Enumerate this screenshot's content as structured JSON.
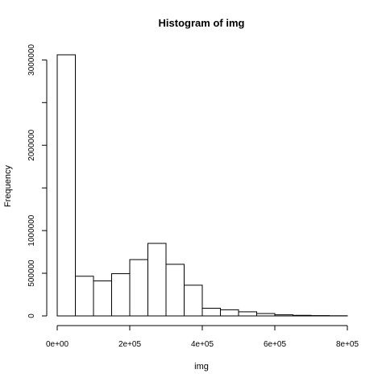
{
  "chart_data": {
    "type": "bar",
    "title": "Histogram of img",
    "xlabel": "img",
    "ylabel": "Frequency",
    "bin_edges": [
      0,
      50000,
      100000,
      150000,
      200000,
      250000,
      300000,
      350000,
      400000,
      450000,
      500000,
      550000,
      600000,
      650000,
      700000,
      750000,
      800000
    ],
    "values": [
      3060000,
      465000,
      410000,
      495000,
      660000,
      850000,
      605000,
      360000,
      90000,
      72000,
      48000,
      28000,
      13000,
      7000,
      4000,
      2000
    ],
    "xlim": [
      0,
      800000
    ],
    "ylim": [
      0,
      3060000
    ],
    "x_ticks": [
      {
        "value": 0,
        "label": "0e+00"
      },
      {
        "value": 200000,
        "label": "2e+05"
      },
      {
        "value": 400000,
        "label": "4e+05"
      },
      {
        "value": 600000,
        "label": "6e+05"
      },
      {
        "value": 800000,
        "label": "8e+05"
      }
    ],
    "y_ticks": [
      {
        "value": 0,
        "label": "0"
      },
      {
        "value": 500000,
        "label": "500000"
      },
      {
        "value": 1000000,
        "label": "1000000"
      },
      {
        "value": 2000000,
        "label": "2000000"
      },
      {
        "value": 3000000,
        "label": "3000000"
      }
    ],
    "y_minor_ticks": [
      1500000,
      2500000
    ],
    "grid": false,
    "bar_fill": "#ffffff",
    "bar_stroke": "#000000"
  }
}
